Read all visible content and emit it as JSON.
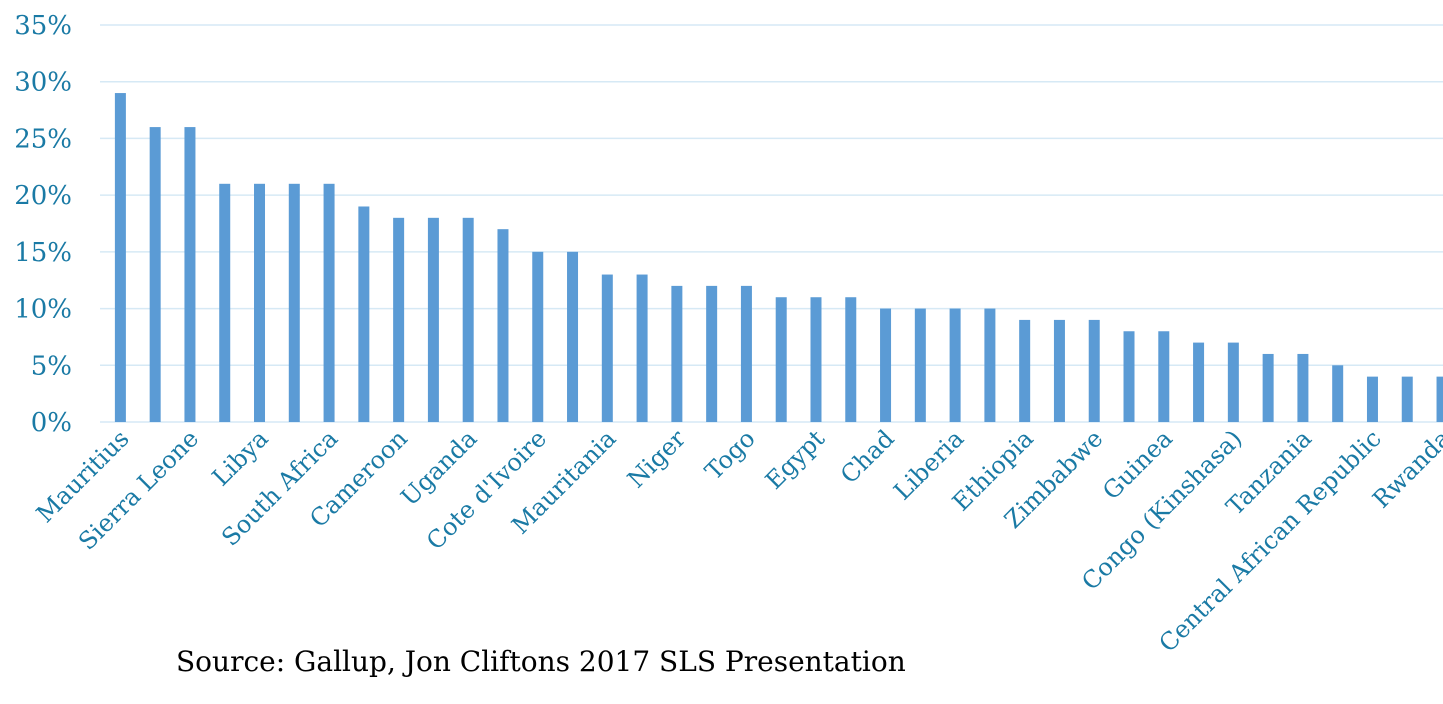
{
  "colors": {
    "bar": "#5b9bd5",
    "grid": "#d6e9f5",
    "text": "#1a7aa5"
  },
  "chart_data": {
    "type": "bar",
    "categories": [
      "Mauritius",
      "",
      "Sierra Leone",
      "",
      "Libya",
      "",
      "South Africa",
      "",
      "Cameroon",
      "",
      "Uganda",
      "",
      "Cote d'Ivoire",
      "",
      "Mauritania",
      "",
      "Niger",
      "",
      "Togo",
      "",
      "Egypt",
      "",
      "Chad",
      "",
      "Liberia",
      "",
      "Ethiopia",
      "",
      "Zimbabwe",
      "",
      "Guinea",
      "",
      "Congo (Kinshasa)",
      "",
      "Tanzania",
      "",
      "Central African Republic",
      "",
      "Rwanda"
    ],
    "values": [
      29,
      26,
      26,
      21,
      21,
      21,
      21,
      19,
      18,
      18,
      18,
      17,
      15,
      15,
      13,
      13,
      12,
      12,
      12,
      11,
      11,
      11,
      10,
      10,
      10,
      10,
      9,
      9,
      9,
      8,
      8,
      7,
      7,
      6,
      6,
      5,
      4,
      4,
      4
    ],
    "unit": "%",
    "yticks": [
      "0%",
      "5%",
      "10%",
      "15%",
      "20%",
      "25%",
      "30%",
      "35%"
    ],
    "ylim": [
      0,
      35
    ],
    "grid": true,
    "source": "Source: Gallup, Jon Cliftons 2017 SLS Presentation"
  }
}
